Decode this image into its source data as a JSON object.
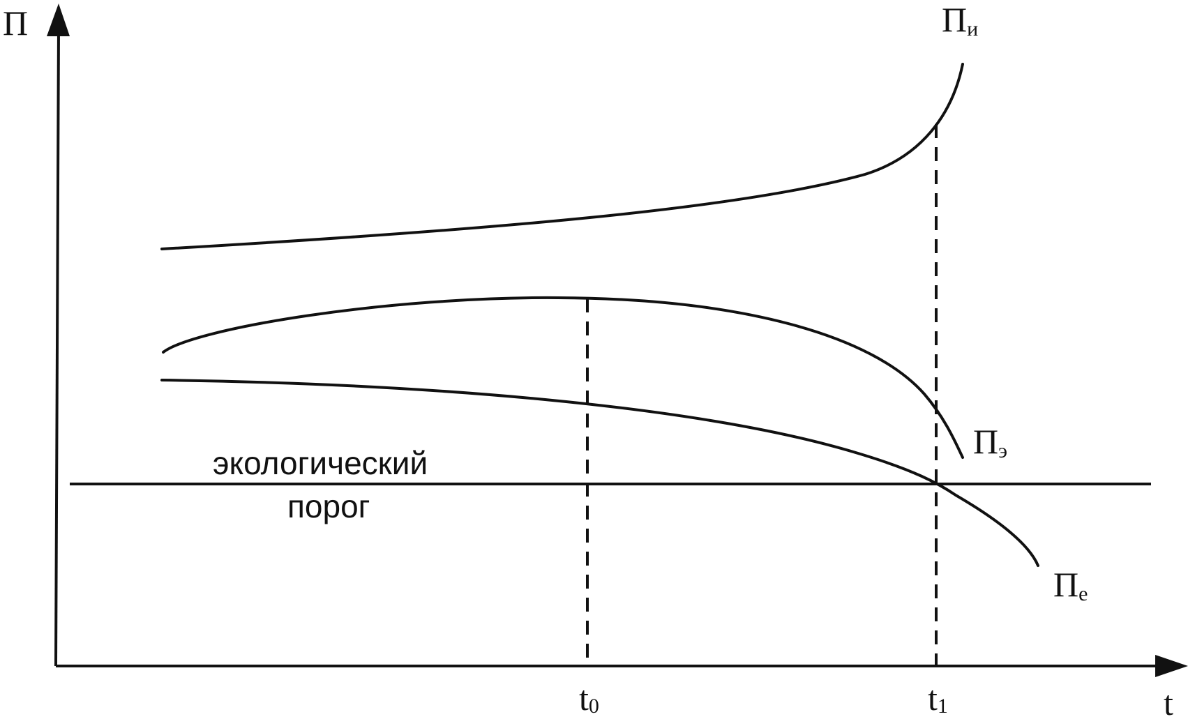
{
  "axes": {
    "y_label": "П",
    "x_label": "t"
  },
  "curves": {
    "pi": {
      "base": "П",
      "sub": "и"
    },
    "pe_eco": {
      "base": "П",
      "sub": "э"
    },
    "pe": {
      "base": "П",
      "sub": "е"
    }
  },
  "threshold": {
    "line1": "экологический",
    "line2": "порог"
  },
  "markers": {
    "t0": {
      "base": "t",
      "sub": "0"
    },
    "t1": {
      "base": "t",
      "sub": "1"
    }
  },
  "colors": {
    "ink": "#111111",
    "background": "#ffffff"
  }
}
